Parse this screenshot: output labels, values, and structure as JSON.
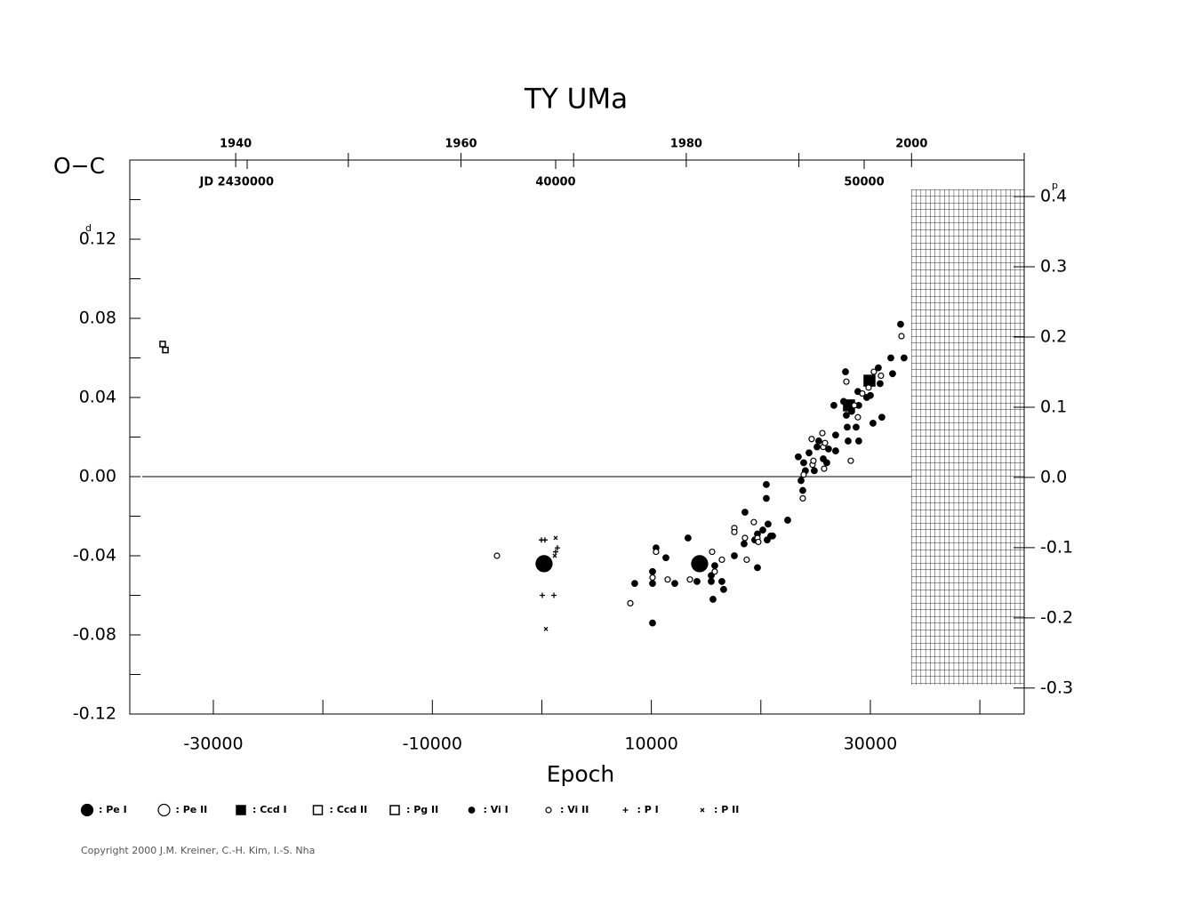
{
  "chart_data": {
    "type": "scatter",
    "title": "TY  UMa",
    "x_label": "Epoch",
    "y_label": "O−C",
    "y_unit": "d",
    "y2_unit": "p",
    "copyright": "Copyright 2000 J.M. Kreiner, C.-H. Kim, I.-S. Nha",
    "xlim": [
      -37630,
      44050
    ],
    "xticks": [
      -30000,
      -10000,
      10000,
      30000
    ],
    "xminorticks": [
      -20000,
      0,
      20000,
      40000
    ],
    "ylim": [
      -0.12,
      0.16
    ],
    "yticks": [
      -0.12,
      -0.08,
      -0.04,
      {
        "value": 0,
        "label": "0.00"
      },
      0.04,
      0.08,
      0.12
    ],
    "yminorticks": [
      -0.1,
      -0.06,
      -0.02,
      0.02,
      0.06,
      0.1,
      0.14
    ],
    "y2lim": [
      -0.337,
      0.452
    ],
    "y2ticks": [
      -0.3,
      -0.2,
      -0.1,
      {
        "value": 0,
        "label": "0.0"
      },
      0.1,
      0.2,
      0.3,
      0.4
    ],
    "x2lim": [
      1930.6,
      2010
    ],
    "x2ticks": [
      1940,
      1960,
      1980,
      2000
    ],
    "x2minorticks": [
      1950,
      1970,
      1990,
      2010
    ],
    "jdlim": [
      26196,
      55187
    ],
    "jdticks": [
      {
        "value": 30000,
        "label": "JD 2430000"
      },
      {
        "value": 40000,
        "label": "40000"
      },
      {
        "value": 50000,
        "label": "50000"
      }
    ],
    "zero_line": true,
    "series": [
      {
        "name": ": Pe I",
        "marker": "circle",
        "filled": true,
        "size": 9,
        "color": "#000",
        "x": [
          200,
          14410
        ],
        "values": [
          -0.044,
          -0.044
        ]
      },
      {
        "name": ": Pe II",
        "marker": "circle",
        "filled": false,
        "size": 6,
        "color": "#000",
        "x": [],
        "values": []
      },
      {
        "name": ": Ccd I",
        "marker": "square",
        "filled": true,
        "size": 6,
        "color": "#000",
        "x": [
          28050,
          29920
        ],
        "values": [
          0.036,
          0.0485
        ]
      },
      {
        "name": ": Ccd II",
        "marker": "square",
        "filled": false,
        "size": 6,
        "color": "#000",
        "x": [],
        "values": []
      },
      {
        "name": ": Pg II",
        "marker": "square",
        "filled": false,
        "size": 3,
        "color": "#000",
        "x": [
          -34630,
          -34380
        ],
        "values": [
          0.067,
          0.064
        ]
      },
      {
        "name": ": Vi I",
        "marker": "circle",
        "filled": true,
        "size": 3.3,
        "color": "#000",
        "x": [
          8480,
          10110,
          10110,
          10110,
          10430,
          11330,
          12140,
          13350,
          14170,
          15470,
          15630,
          15470,
          15790,
          16600,
          16440,
          17580,
          18550,
          18470,
          19440,
          19690,
          19690,
          20180,
          20500,
          20500,
          20580,
          20910,
          21070,
          20660,
          22450,
          23420,
          23670,
          23830,
          23910,
          24070,
          24400,
          24880,
          25130,
          25290,
          25700,
          26020,
          26180,
          26670,
          26830,
          26830,
          27560,
          27730,
          27810,
          27970,
          27890,
          28290,
          28700,
          28860,
          28940,
          28940,
          29670,
          30000,
          30240,
          30730,
          30890,
          31050,
          31870,
          32030,
          32760,
          33080
        ],
        "values": [
          -0.054,
          -0.048,
          -0.054,
          -0.074,
          -0.036,
          -0.041,
          -0.054,
          -0.031,
          -0.053,
          -0.053,
          -0.062,
          -0.05,
          -0.045,
          -0.057,
          -0.053,
          -0.04,
          -0.018,
          -0.034,
          -0.032,
          -0.029,
          -0.046,
          -0.027,
          -0.004,
          -0.011,
          -0.032,
          -0.03,
          -0.03,
          -0.024,
          -0.022,
          0.01,
          -0.002,
          -0.007,
          0.007,
          0.003,
          0.012,
          0.003,
          0.015,
          0.018,
          0.009,
          0.007,
          0.014,
          0.036,
          0.013,
          0.021,
          0.038,
          0.053,
          0.031,
          0.018,
          0.025,
          0.033,
          0.025,
          0.043,
          0.018,
          0.036,
          0.04,
          0.041,
          0.027,
          0.055,
          0.047,
          0.03,
          0.06,
          0.052,
          0.077,
          0.06
        ]
      },
      {
        "name": ": Vi II",
        "marker": "circle",
        "filled": false,
        "size": 3,
        "color": "#000",
        "x": [
          -4100,
          8080,
          10110,
          10430,
          11490,
          13520,
          15550,
          15790,
          16440,
          17580,
          17580,
          18550,
          18710,
          19360,
          19690,
          19770,
          23830,
          23910,
          24720,
          24640,
          24800,
          25620,
          25700,
          25780,
          25860,
          27810,
          28210,
          28540,
          28860,
          29270,
          29840,
          30320,
          30970,
          32840
        ],
        "values": [
          -0.04,
          -0.064,
          -0.051,
          -0.038,
          -0.052,
          -0.052,
          -0.038,
          -0.048,
          -0.042,
          -0.026,
          -0.028,
          -0.031,
          -0.042,
          -0.023,
          -0.031,
          -0.033,
          -0.011,
          0.001,
          0.006,
          0.019,
          0.008,
          0.022,
          0.015,
          0.004,
          0.017,
          0.048,
          0.008,
          0.036,
          0.03,
          0.042,
          0.045,
          0.053,
          0.051,
          0.071
        ]
      },
      {
        "name": ": P I",
        "marker": "plus",
        "filled": false,
        "size": 3,
        "color": "#000",
        "x": [
          -40,
          280,
          40,
          1100,
          1260,
          1420
        ],
        "values": [
          -0.032,
          -0.032,
          -0.06,
          -0.06,
          -0.038,
          -0.036
        ]
      },
      {
        "name": ": P II",
        "marker": "cross",
        "filled": false,
        "size": 2,
        "color": "#000",
        "x": [
          370,
          1260,
          1180
        ],
        "values": [
          -0.077,
          -0.031,
          -0.04
        ]
      }
    ]
  }
}
